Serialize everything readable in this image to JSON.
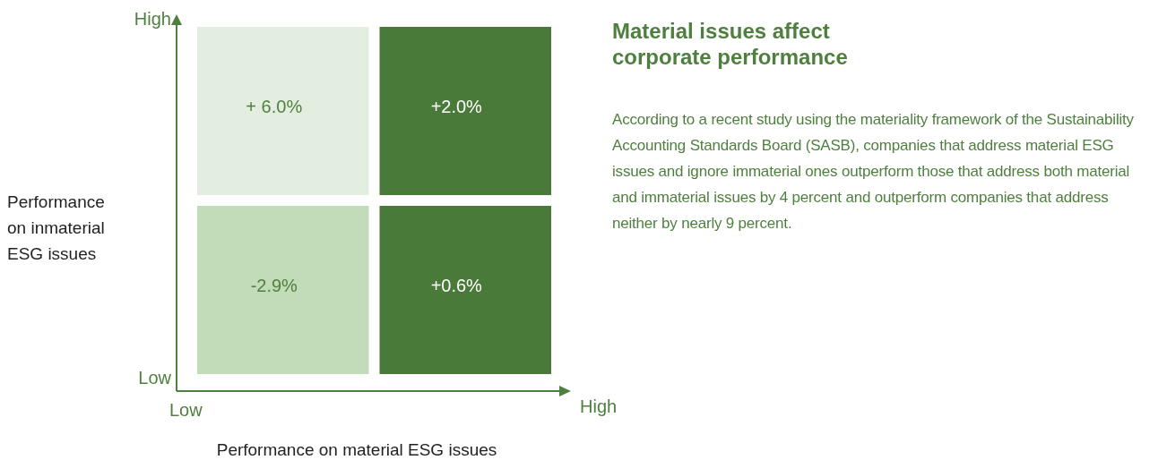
{
  "chart_data": {
    "type": "heatmap",
    "title": "Material issues affect corporate performance",
    "xlabel": "Performance on material ESG issues",
    "ylabel": "Performance on inmaterial ESG issues",
    "categories": [
      "Low",
      "High"
    ],
    "y_categories": [
      "High",
      "Low"
    ],
    "cells": [
      [
        6.0,
        2.0
      ],
      [
        -2.9,
        0.6
      ]
    ],
    "cell_labels": [
      [
        "+ 6.0%",
        "+2.0%"
      ],
      [
        "-2.9%",
        "+0.6%"
      ]
    ],
    "colors": [
      [
        "#e3eee0",
        "#4a7a3a"
      ],
      [
        "#c2dcba",
        "#4a7a3a"
      ]
    ],
    "annotations": [
      "According to a recent study using the materiality framework of the Sustainability Accounting Standards Board (SASB), companies that address material ESG issues and ignore immaterial ones outperform those that address both material and immaterial issues by 4 percent and outperform companies that address neither by nearly 9 percent."
    ]
  }
}
